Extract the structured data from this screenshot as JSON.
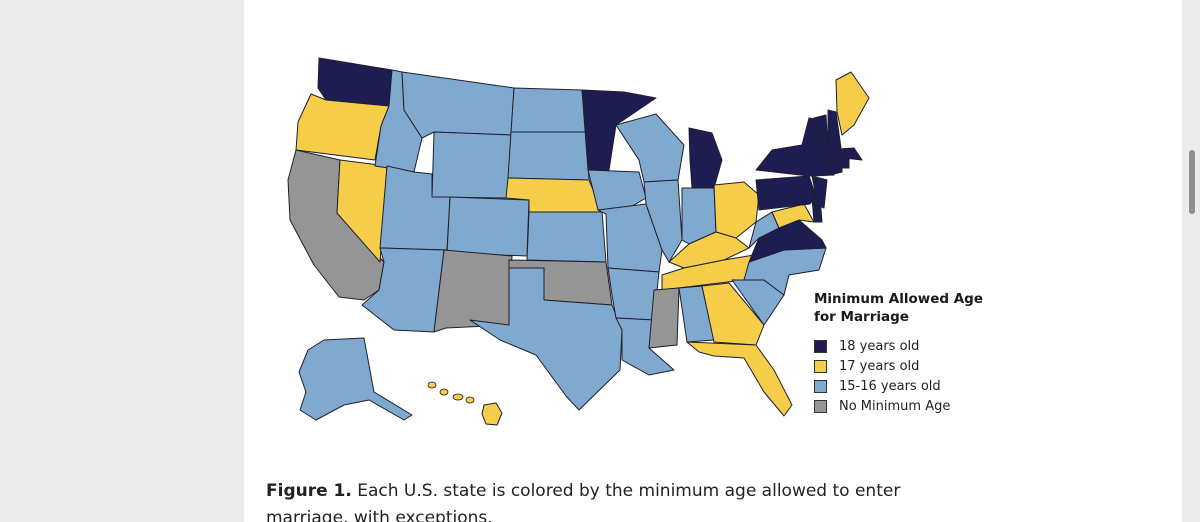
{
  "colors": {
    "age18": "#1e1d52",
    "age17": "#f6cd48",
    "age15_16": "#80a9cf",
    "none": "#959595",
    "border": "#1f1f2e"
  },
  "legend": {
    "title_line1": "Minimum Allowed Age",
    "title_line2": "for Marriage",
    "items": [
      {
        "label": "18 years old",
        "color": "#1e1d52"
      },
      {
        "label": "17 years old",
        "color": "#f6cd48"
      },
      {
        "label": "15-16 years old",
        "color": "#80a9cf"
      },
      {
        "label": "No Minimum Age",
        "color": "#959595"
      }
    ]
  },
  "caption": {
    "label": "Figure 1.",
    "text": " Each U.S. state is colored by the minimum age allowed to enter marriage, with exceptions."
  },
  "states": {
    "WA": "age18",
    "OR": "age17",
    "CA": "none",
    "NV": "age17",
    "ID": "age15_16",
    "MT": "age15_16",
    "WY": "age15_16",
    "UT": "age15_16",
    "AZ": "age15_16",
    "CO": "age15_16",
    "NM": "none",
    "ND": "age15_16",
    "SD": "age15_16",
    "NE": "age17",
    "KS": "age15_16",
    "OK": "none",
    "TX": "age15_16",
    "MN": "age18",
    "IA": "age15_16",
    "MO": "age15_16",
    "AR": "age15_16",
    "LA": "age15_16",
    "WI": "age15_16",
    "IL": "age15_16",
    "MI": "age18",
    "IN": "age15_16",
    "OH": "age17",
    "KY": "age17",
    "TN": "age17",
    "MS": "none",
    "AL": "age15_16",
    "GA": "age17",
    "FL": "age17",
    "SC": "age15_16",
    "NC": "age15_16",
    "VA": "age18",
    "WV": "age15_16",
    "MD": "age17",
    "DE": "age18",
    "PA": "age18",
    "NJ": "age18",
    "NY": "age18",
    "CT": "age18",
    "RI": "age18",
    "MA": "age18",
    "VT": "age18",
    "NH": "age18",
    "ME": "age17",
    "AK": "age15_16",
    "HI": "age17"
  }
}
